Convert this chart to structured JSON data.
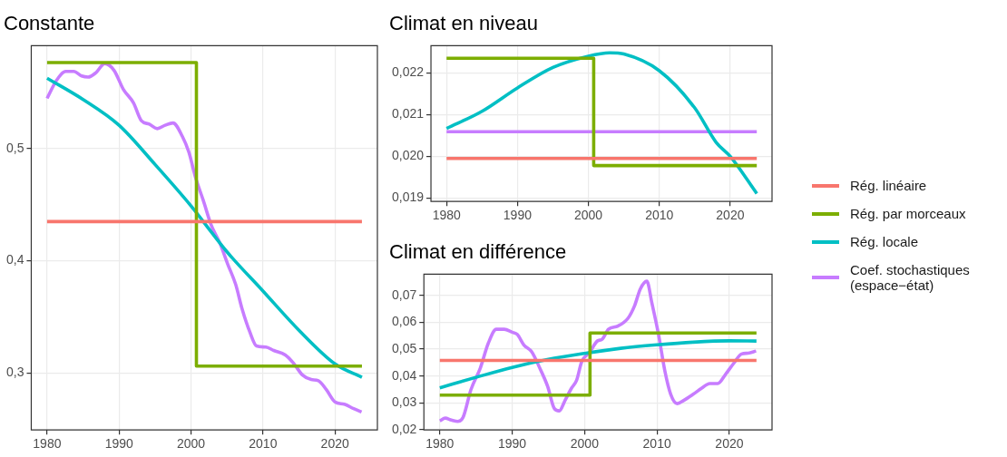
{
  "chart_data": [
    {
      "type": "line",
      "title": "Constante",
      "xlim": [
        1977.8,
        2025.9
      ],
      "xticks": [
        1980,
        1990,
        2000,
        2010,
        2020
      ],
      "ylim": [
        0.249,
        0.592
      ],
      "yticks": [
        {
          "value": 0.3,
          "label": "0,3"
        },
        {
          "value": 0.4,
          "label": "0,4"
        },
        {
          "value": 0.5,
          "label": "0,5"
        }
      ],
      "grid": true,
      "legend": "right",
      "series": [
        {
          "name": "Rég. linéaire",
          "color": "#f8766d",
          "x": [
            1980,
            2023.75
          ],
          "values": [
            0.435,
            0.435
          ]
        },
        {
          "name": "Rég. par morceaux",
          "color": "#7cae00",
          "x": [
            1980,
            2000.75,
            2000.75,
            2023.75
          ],
          "values": [
            0.577,
            0.577,
            0.306,
            0.306
          ]
        },
        {
          "name": "Rég. locale",
          "color": "#00bfc4",
          "x": [
            1980,
            1985,
            1990,
            1995,
            2000,
            2005,
            2010,
            2015,
            2020,
            2023.75
          ],
          "values": [
            0.563,
            0.544,
            0.521,
            0.486,
            0.449,
            0.408,
            0.373,
            0.338,
            0.308,
            0.296
          ]
        },
        {
          "name": "Coef. stochastiques (espace−état)",
          "color": "#c77cff",
          "x": [
            1980,
            1981.3,
            1982.6,
            1983.7,
            1984.8,
            1985.7,
            1986.8,
            1988,
            1989.3,
            1990.6,
            1992,
            1993.1,
            1994.2,
            1995.3,
            1996.4,
            1997.5,
            1998.8,
            1999.7,
            2000.6,
            2001.7,
            2002.8,
            2004,
            2005.1,
            2006.2,
            2007.1,
            2008.2,
            2009.1,
            2010.4,
            2011.5,
            2013.1,
            2014.2,
            2015.5,
            2016.7,
            2017.7,
            2018.8,
            2020,
            2021.3,
            2022.6,
            2023.7
          ],
          "values": [
            0.545,
            0.561,
            0.569,
            0.569,
            0.565,
            0.564,
            0.568,
            0.576,
            0.57,
            0.553,
            0.541,
            0.525,
            0.522,
            0.518,
            0.521,
            0.523,
            0.511,
            0.497,
            0.475,
            0.454,
            0.432,
            0.416,
            0.397,
            0.379,
            0.357,
            0.336,
            0.324,
            0.323,
            0.32,
            0.316,
            0.309,
            0.298,
            0.294,
            0.293,
            0.285,
            0.274,
            0.272,
            0.268,
            0.265
          ]
        }
      ]
    },
    {
      "type": "line",
      "title": "Climat en niveau",
      "xlim": [
        1977.8,
        2025.9
      ],
      "xticks": [
        1980,
        1990,
        2000,
        2010,
        2020
      ],
      "ylim": [
        0.01892,
        0.02265
      ],
      "yticks": [
        {
          "value": 0.019,
          "label": "0,019"
        },
        {
          "value": 0.02,
          "label": "0,020"
        },
        {
          "value": 0.021,
          "label": "0,021"
        },
        {
          "value": 0.022,
          "label": "0,022"
        }
      ],
      "grid": true,
      "series": [
        {
          "color": "#f8766d",
          "x": [
            1980,
            2023.75
          ],
          "values": [
            0.01995,
            0.01995
          ]
        },
        {
          "color": "#7cae00",
          "x": [
            1980,
            2000.75,
            2000.75,
            2023.75
          ],
          "values": [
            0.02235,
            0.02235,
            0.01978,
            0.01978
          ]
        },
        {
          "color": "#00bfc4",
          "x": [
            1980,
            1985,
            1990,
            1995,
            2000,
            2003,
            2005,
            2010,
            2015,
            2018,
            2020,
            2023.75
          ],
          "values": [
            0.02067,
            0.02108,
            0.02164,
            0.02213,
            0.0224,
            0.02248,
            0.02245,
            0.02205,
            0.02116,
            0.02034,
            0.02,
            0.01911
          ]
        },
        {
          "color": "#c77cff",
          "x": [
            1980,
            2023.75
          ],
          "values": [
            0.02059,
            0.02059
          ]
        }
      ]
    },
    {
      "type": "line",
      "title": "Climat en différence",
      "xlim": [
        1977.8,
        2025.9
      ],
      "xticks": [
        1980,
        1990,
        2000,
        2010,
        2020
      ],
      "ylim": [
        0.0199,
        0.0779
      ],
      "yticks": [
        {
          "value": 0.02,
          "label": "0,02"
        },
        {
          "value": 0.03,
          "label": "0,03"
        },
        {
          "value": 0.04,
          "label": "0,04"
        },
        {
          "value": 0.05,
          "label": "0,05"
        },
        {
          "value": 0.06,
          "label": "0,06"
        },
        {
          "value": 0.07,
          "label": "0,07"
        }
      ],
      "grid": true,
      "series": [
        {
          "color": "#f8766d",
          "x": [
            1980,
            2023.75
          ],
          "values": [
            0.0458,
            0.0458
          ]
        },
        {
          "color": "#7cae00",
          "x": [
            1980,
            2000.75,
            2000.75,
            2023.75
          ],
          "values": [
            0.0329,
            0.0329,
            0.056,
            0.056
          ]
        },
        {
          "color": "#00bfc4",
          "x": [
            1980,
            1985,
            1990,
            1995,
            2000,
            2005,
            2010,
            2015,
            2020,
            2023.75
          ],
          "values": [
            0.0356,
            0.0395,
            0.0432,
            0.0462,
            0.0484,
            0.0503,
            0.0516,
            0.0526,
            0.0531,
            0.053
          ]
        },
        {
          "color": "#c77cff",
          "x": [
            1980,
            1980.75,
            1981.6,
            1982.5,
            1983.2,
            1984.3,
            1985.6,
            1986.7,
            1987.8,
            1988.9,
            1990,
            1990.7,
            1991.6,
            1992.7,
            1993.8,
            1994.9,
            1995.8,
            1996.5,
            1997.3,
            1998.2,
            1998.9,
            1999.6,
            2000.7,
            2001.8,
            2002.4,
            2003.3,
            2004.6,
            2006,
            2006.9,
            2007.7,
            2008.6,
            2009.3,
            2010.2,
            2011.1,
            2011.9,
            2012.8,
            2013.7,
            2015,
            2016.2,
            2017.3,
            2018.4,
            2019.5,
            2020.6,
            2021.7,
            2022.6,
            2023.7
          ],
          "values": [
            0.0233,
            0.0243,
            0.0236,
            0.0231,
            0.0245,
            0.0349,
            0.043,
            0.0522,
            0.0574,
            0.0574,
            0.0563,
            0.0555,
            0.0516,
            0.049,
            0.043,
            0.0361,
            0.028,
            0.027,
            0.0309,
            0.0355,
            0.0384,
            0.0453,
            0.0488,
            0.0531,
            0.0536,
            0.0574,
            0.0586,
            0.0615,
            0.0661,
            0.0724,
            0.0753,
            0.0672,
            0.0557,
            0.0418,
            0.0332,
            0.0297,
            0.0309,
            0.0332,
            0.0355,
            0.0372,
            0.0372,
            0.0407,
            0.0447,
            0.0482,
            0.0485,
            0.0493
          ]
        }
      ]
    }
  ]
}
